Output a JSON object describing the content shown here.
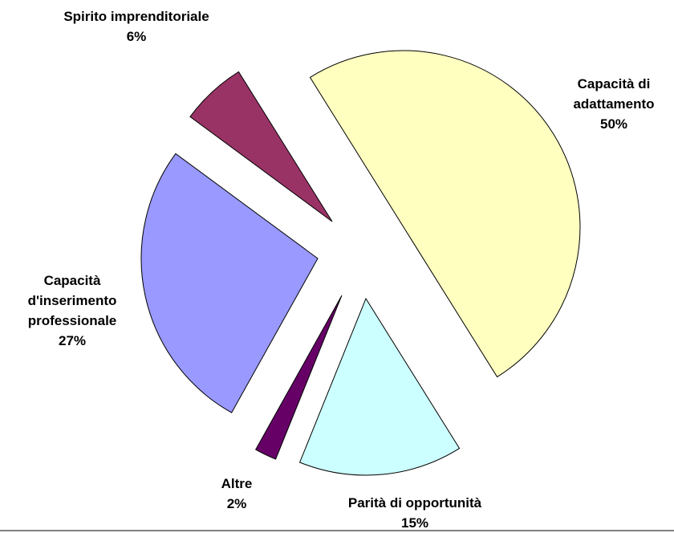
{
  "chart_data": {
    "type": "pie",
    "categories": [
      "Capacità di adattamento",
      "Parità di opportunità",
      "Altre",
      "Capacità d'inserimento professionale",
      "Spirito imprenditoriale"
    ],
    "values": [
      50,
      15,
      2,
      27,
      6
    ],
    "value_labels": [
      "50%",
      "15%",
      "2%",
      "27%",
      "6%"
    ],
    "colors": [
      "#ffffc0",
      "#ccffff",
      "#660066",
      "#9999ff",
      "#993366"
    ]
  }
}
